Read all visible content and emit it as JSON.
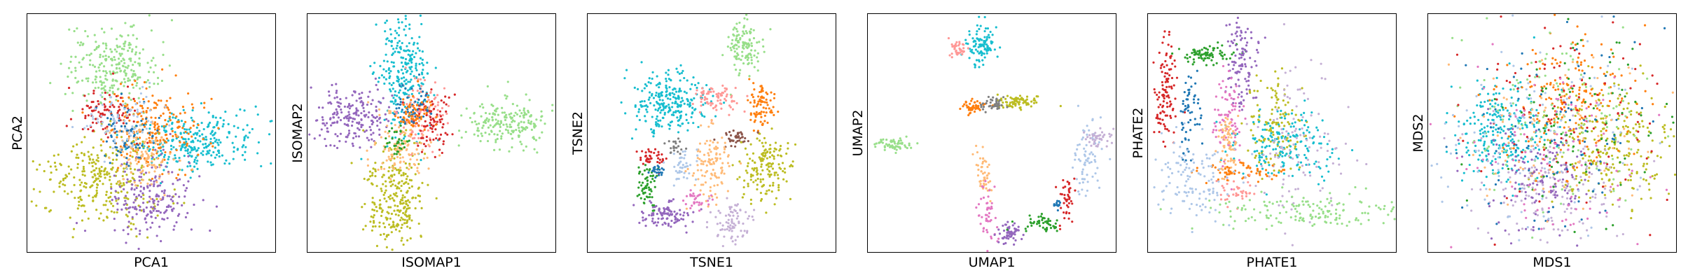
{
  "figure": {
    "palette": [
      "#1f77b4",
      "#ff7f0e",
      "#2ca02c",
      "#d62728",
      "#9467bd",
      "#8c564b",
      "#e377c2",
      "#7f7f7f",
      "#bcbd22",
      "#17becf",
      "#aec7e8",
      "#ffbb78",
      "#98df8a",
      "#ff9896",
      "#c5b0d5"
    ],
    "marker": "small-dot"
  },
  "chart_data": [
    {
      "type": "scatter",
      "title": "",
      "xlabel": "PCA1",
      "ylabel": "PCA2",
      "xticks": [],
      "yticks": [],
      "grid": false,
      "legend": "none",
      "xlim": [
        0,
        100
      ],
      "ylim": [
        0,
        100
      ],
      "clusters": [
        {
          "color": "#98df8a",
          "center": [
            34,
            78
          ],
          "spread": [
            9,
            8
          ],
          "n": 260
        },
        {
          "color": "#17becf",
          "center": [
            68,
            47
          ],
          "spread": [
            12,
            6
          ],
          "n": 280
        },
        {
          "color": "#ff7f0e",
          "center": [
            50,
            52
          ],
          "spread": [
            10,
            9
          ],
          "n": 220
        },
        {
          "color": "#bcbd22",
          "center": [
            30,
            30
          ],
          "spread": [
            12,
            10
          ],
          "n": 300
        },
        {
          "color": "#9467bd",
          "center": [
            50,
            22
          ],
          "spread": [
            8,
            8
          ],
          "n": 200
        },
        {
          "color": "#d62728",
          "center": [
            32,
            58
          ],
          "spread": [
            6,
            6
          ],
          "n": 90
        },
        {
          "color": "#ffbb78",
          "center": [
            46,
            40
          ],
          "spread": [
            7,
            8
          ],
          "n": 120
        },
        {
          "color": "#1f77b4",
          "center": [
            40,
            50
          ],
          "spread": [
            6,
            6
          ],
          "n": 70
        },
        {
          "color": "#aec7e8",
          "center": [
            38,
            55
          ],
          "spread": [
            8,
            7
          ],
          "n": 80
        }
      ]
    },
    {
      "type": "scatter",
      "title": "",
      "xlabel": "ISOMAP1",
      "ylabel": "ISOMAP2",
      "xticks": [],
      "yticks": [],
      "grid": false,
      "legend": "none",
      "xlim": [
        0,
        100
      ],
      "ylim": [
        0,
        100
      ],
      "clusters": [
        {
          "color": "#17becf",
          "center": [
            38,
            74
          ],
          "spread": [
            5,
            13
          ],
          "n": 260
        },
        {
          "color": "#9467bd",
          "center": [
            18,
            57
          ],
          "spread": [
            8,
            6
          ],
          "n": 200
        },
        {
          "color": "#98df8a",
          "center": [
            80,
            54
          ],
          "spread": [
            9,
            5
          ],
          "n": 200
        },
        {
          "color": "#bcbd22",
          "center": [
            35,
            22
          ],
          "spread": [
            6,
            11
          ],
          "n": 260
        },
        {
          "color": "#ffbb78",
          "center": [
            38,
            45
          ],
          "spread": [
            6,
            7
          ],
          "n": 120
        },
        {
          "color": "#ff9896",
          "center": [
            46,
            58
          ],
          "spread": [
            5,
            7
          ],
          "n": 110
        },
        {
          "color": "#d62728",
          "center": [
            50,
            55
          ],
          "spread": [
            4,
            6
          ],
          "n": 80
        },
        {
          "color": "#1f77b4",
          "center": [
            42,
            62
          ],
          "spread": [
            4,
            5
          ],
          "n": 60
        },
        {
          "color": "#ff7f0e",
          "center": [
            43,
            58
          ],
          "spread": [
            4,
            4
          ],
          "n": 60
        },
        {
          "color": "#2ca02c",
          "center": [
            36,
            46
          ],
          "spread": [
            3,
            3
          ],
          "n": 30
        }
      ]
    },
    {
      "type": "scatter",
      "title": "",
      "xlabel": "TSNE1",
      "ylabel": "TSNE2",
      "xticks": [],
      "yticks": [],
      "grid": false,
      "legend": "none",
      "xlim": [
        0,
        100
      ],
      "ylim": [
        0,
        100
      ],
      "clusters": [
        {
          "color": "#98df8a",
          "center": [
            63,
            87
          ],
          "spread": [
            3.5,
            6
          ],
          "n": 120
        },
        {
          "color": "#17becf",
          "center": [
            33,
            63
          ],
          "spread": [
            7,
            6
          ],
          "n": 260
        },
        {
          "color": "#ff9896",
          "center": [
            52,
            65
          ],
          "spread": [
            4,
            3
          ],
          "n": 80
        },
        {
          "color": "#ff7f0e",
          "center": [
            70,
            61
          ],
          "spread": [
            3,
            5
          ],
          "n": 90
        },
        {
          "color": "#8c564b",
          "center": [
            60,
            48
          ],
          "spread": [
            3,
            2
          ],
          "n": 40
        },
        {
          "color": "#ffbb78",
          "center": [
            50,
            37
          ],
          "spread": [
            4,
            8
          ],
          "n": 110
        },
        {
          "color": "#bcbd22",
          "center": [
            72,
            36
          ],
          "spread": [
            5,
            7
          ],
          "n": 160
        },
        {
          "color": "#c5b0d5",
          "center": [
            58,
            12
          ],
          "spread": [
            4,
            4
          ],
          "n": 80
        },
        {
          "color": "#9467bd",
          "center": [
            32,
            15
          ],
          "spread": [
            5,
            3
          ],
          "n": 100
        },
        {
          "color": "#2ca02c",
          "center": [
            24,
            28
          ],
          "spread": [
            2,
            5
          ],
          "n": 60
        },
        {
          "color": "#d62728",
          "center": [
            26,
            39
          ],
          "spread": [
            3,
            2
          ],
          "n": 40
        },
        {
          "color": "#aec7e8",
          "center": [
            38,
            37
          ],
          "spread": [
            3,
            3
          ],
          "n": 40
        },
        {
          "color": "#1f77b4",
          "center": [
            28,
            34
          ],
          "spread": [
            1.5,
            1.5
          ],
          "n": 20
        },
        {
          "color": "#7f7f7f",
          "center": [
            35,
            44
          ],
          "spread": [
            2,
            2
          ],
          "n": 20
        },
        {
          "color": "#e377c2",
          "center": [
            44,
            22
          ],
          "spread": [
            3,
            2
          ],
          "n": 30
        }
      ]
    },
    {
      "type": "scatter",
      "title": "",
      "xlabel": "UMAP1",
      "ylabel": "UMAP2",
      "xticks": [],
      "yticks": [],
      "grid": false,
      "legend": "none",
      "xlim": [
        0,
        100
      ],
      "ylim": [
        0,
        100
      ],
      "clusters": [
        {
          "color": "#17becf",
          "center": [
            46,
            87
          ],
          "spread": [
            3,
            4
          ],
          "n": 100
        },
        {
          "color": "#ff9896",
          "center": [
            36,
            86
          ],
          "spread": [
            2,
            2
          ],
          "n": 40
        },
        {
          "color": "#ff7f0e",
          "center": [
            42,
            61
          ],
          "spread": [
            2.5,
            1.5
          ],
          "n": 50
        },
        {
          "color": "#bcbd22",
          "center": [
            60,
            63
          ],
          "spread": [
            5,
            1.5
          ],
          "n": 80
        },
        {
          "color": "#7f7f7f",
          "center": [
            51,
            62
          ],
          "spread": [
            3,
            1.5
          ],
          "n": 40
        },
        {
          "color": "#98df8a",
          "center": [
            10,
            45
          ],
          "spread": [
            4,
            1.5
          ],
          "n": 60
        },
        {
          "color": "#ffbb78",
          "center": [
            47,
            33
          ],
          "spread": [
            1.5,
            5
          ],
          "n": 50
        },
        {
          "color": "#e377c2",
          "center": [
            48,
            15
          ],
          "spread": [
            2,
            6
          ],
          "n": 50
        },
        {
          "color": "#9467bd",
          "center": [
            58,
            8
          ],
          "spread": [
            3,
            2
          ],
          "n": 60
        },
        {
          "color": "#2ca02c",
          "center": [
            70,
            12
          ],
          "spread": [
            4,
            2
          ],
          "n": 50
        },
        {
          "color": "#d62728",
          "center": [
            80,
            22
          ],
          "spread": [
            1.5,
            5
          ],
          "n": 40
        },
        {
          "color": "#aec7e8",
          "center": [
            88,
            40
          ],
          "spread": [
            3,
            8
          ],
          "n": 70
        },
        {
          "color": "#c5b0d5",
          "center": [
            93,
            48
          ],
          "spread": [
            3,
            2
          ],
          "n": 40
        },
        {
          "color": "#1f77b4",
          "center": [
            76,
            20
          ],
          "spread": [
            1,
            1
          ],
          "n": 15
        }
      ]
    },
    {
      "type": "scatter",
      "title": "",
      "xlabel": "PHATE1",
      "ylabel": "PHATE2",
      "xticks": [],
      "yticks": [],
      "grid": false,
      "legend": "none",
      "xlim": [
        0,
        100
      ],
      "ylim": [
        0,
        100
      ],
      "clusters": [
        {
          "color": "#2ca02c",
          "center": [
            23,
            83
          ],
          "spread": [
            6,
            2
          ],
          "n": 80
        },
        {
          "color": "#d62728",
          "center": [
            7,
            65
          ],
          "spread": [
            2,
            12
          ],
          "n": 110
        },
        {
          "color": "#9467bd",
          "center": [
            38,
            80
          ],
          "spread": [
            3,
            10
          ],
          "n": 110
        },
        {
          "color": "#1f77b4",
          "center": [
            17,
            58
          ],
          "spread": [
            2,
            10
          ],
          "n": 60
        },
        {
          "color": "#bcbd22",
          "center": [
            50,
            55
          ],
          "spread": [
            5,
            10
          ],
          "n": 130
        },
        {
          "color": "#17becf",
          "center": [
            55,
            45
          ],
          "spread": [
            10,
            7
          ],
          "n": 180
        },
        {
          "color": "#c5b0d5",
          "center": [
            60,
            40
          ],
          "spread": [
            9,
            18
          ],
          "n": 110
        },
        {
          "color": "#e377c2",
          "center": [
            33,
            55
          ],
          "spread": [
            3,
            10
          ],
          "n": 80
        },
        {
          "color": "#ffbb78",
          "center": [
            32,
            45
          ],
          "spread": [
            2,
            7
          ],
          "n": 80
        },
        {
          "color": "#ff7f0e",
          "center": [
            38,
            34
          ],
          "spread": [
            8,
            2
          ],
          "n": 60
        },
        {
          "color": "#ff9896",
          "center": [
            36,
            25
          ],
          "spread": [
            4,
            3
          ],
          "n": 40
        },
        {
          "color": "#aec7e8",
          "center": [
            18,
            30
          ],
          "spread": [
            8,
            9
          ],
          "n": 120
        },
        {
          "color": "#98df8a",
          "center": [
            68,
            17
          ],
          "spread": [
            20,
            4
          ],
          "n": 160
        }
      ]
    },
    {
      "type": "scatter",
      "title": "",
      "xlabel": "MDS1",
      "ylabel": "MDS2",
      "xticks": [],
      "yticks": [],
      "grid": false,
      "legend": "none",
      "xlim": [
        0,
        100
      ],
      "ylim": [
        0,
        100
      ],
      "clusters": [
        {
          "color": "#17becf",
          "center": [
            30,
            50
          ],
          "spread": [
            10,
            10
          ],
          "n": 260
        },
        {
          "color": "#bcbd22",
          "center": [
            72,
            45
          ],
          "spread": [
            12,
            13
          ],
          "n": 260
        },
        {
          "color": "#c5b0d5",
          "center": [
            50,
            28
          ],
          "spread": [
            14,
            11
          ],
          "n": 160
        },
        {
          "color": "#ff7f0e",
          "center": [
            55,
            65
          ],
          "spread": [
            14,
            13
          ],
          "n": 180
        },
        {
          "color": "#9467bd",
          "center": [
            45,
            30
          ],
          "spread": [
            12,
            13
          ],
          "n": 130
        },
        {
          "color": "#98df8a",
          "center": [
            50,
            55
          ],
          "spread": [
            22,
            20
          ],
          "n": 130
        },
        {
          "color": "#d62728",
          "center": [
            55,
            60
          ],
          "spread": [
            20,
            20
          ],
          "n": 110
        },
        {
          "color": "#aec7e8",
          "center": [
            45,
            50
          ],
          "spread": [
            22,
            22
          ],
          "n": 110
        },
        {
          "color": "#e377c2",
          "center": [
            52,
            40
          ],
          "spread": [
            20,
            20
          ],
          "n": 90
        },
        {
          "color": "#2ca02c",
          "center": [
            60,
            55
          ],
          "spread": [
            20,
            20
          ],
          "n": 90
        },
        {
          "color": "#1f77b4",
          "center": [
            50,
            50
          ],
          "spread": [
            22,
            22
          ],
          "n": 90
        },
        {
          "color": "#ffbb78",
          "center": [
            50,
            48
          ],
          "spread": [
            20,
            20
          ],
          "n": 90
        }
      ]
    }
  ]
}
